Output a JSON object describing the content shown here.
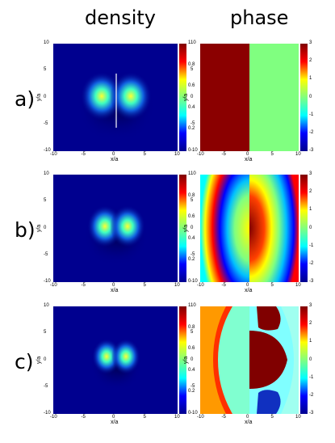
{
  "columns": {
    "left_title": "density",
    "right_title": "phase"
  },
  "rows": [
    {
      "label": "a)"
    },
    {
      "label": "b)"
    },
    {
      "label": "c)"
    }
  ],
  "axes": {
    "xlabel": "x/a",
    "ylabel": "y/a",
    "x_ticks": [
      "-10",
      "-5",
      "0",
      "5",
      "10"
    ],
    "y_ticks": [
      "10",
      "5",
      "0",
      "-5",
      "-10"
    ]
  },
  "density_colorbar": {
    "ticks": [
      "1",
      "0.8",
      "0.6",
      "0.4",
      "0.2",
      "0"
    ]
  },
  "phase_colorbar": {
    "ticks": [
      "3",
      "2",
      "1",
      "0",
      "-1",
      "-2",
      "-3"
    ]
  },
  "colors": {
    "dark_red": "#8b0000",
    "light_green": "#80ff80",
    "navy": "#00008f",
    "mid_blue": "#1f4fd0"
  }
}
